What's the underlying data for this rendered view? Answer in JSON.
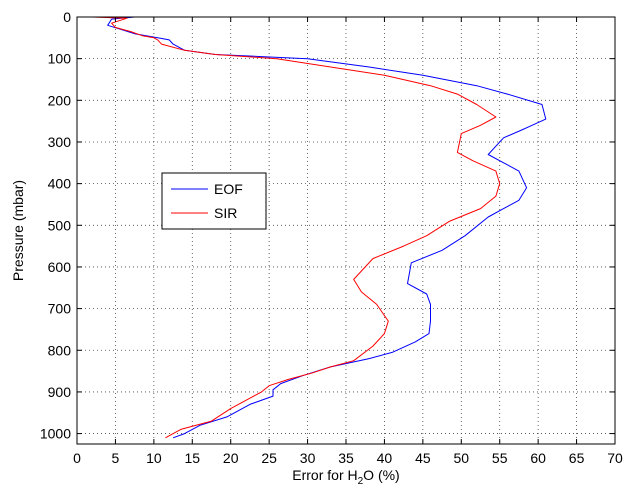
{
  "chart_data": {
    "type": "line",
    "xlabel": "Error for H2O (%)",
    "xlabel_parts": {
      "base": "Error for H",
      "sub": "2",
      "rest": "O (%)"
    },
    "ylabel": "Pressure (mbar)",
    "xlim": [
      0,
      70
    ],
    "ylim": [
      1025,
      0
    ],
    "y_reversed": true,
    "xticks": [
      0,
      5,
      10,
      15,
      20,
      25,
      30,
      35,
      40,
      45,
      50,
      55,
      60,
      65,
      70
    ],
    "yticks": [
      0,
      100,
      200,
      300,
      400,
      500,
      600,
      700,
      800,
      900,
      1000
    ],
    "grid": true,
    "legend_position": "middle-left",
    "series": [
      {
        "name": "EOF",
        "color": "#0000ff",
        "points": [
          [
            7.5,
            0
          ],
          [
            4.5,
            5
          ],
          [
            4.0,
            20
          ],
          [
            7.5,
            40
          ],
          [
            10.5,
            50
          ],
          [
            12.0,
            55
          ],
          [
            12.5,
            65
          ],
          [
            14.0,
            80
          ],
          [
            18.0,
            90
          ],
          [
            24.0,
            95
          ],
          [
            30.0,
            100
          ],
          [
            38.0,
            120
          ],
          [
            45.0,
            140
          ],
          [
            52.0,
            165
          ],
          [
            56.0,
            185
          ],
          [
            60.5,
            210
          ],
          [
            61.0,
            245
          ],
          [
            58.0,
            270
          ],
          [
            55.5,
            290
          ],
          [
            53.5,
            330
          ],
          [
            55.5,
            350
          ],
          [
            57.5,
            370
          ],
          [
            58.5,
            410
          ],
          [
            57.5,
            440
          ],
          [
            55.5,
            460
          ],
          [
            53.5,
            480
          ],
          [
            50.5,
            525
          ],
          [
            47.5,
            560
          ],
          [
            43.5,
            590
          ],
          [
            43.0,
            640
          ],
          [
            45.5,
            665
          ],
          [
            46.0,
            690
          ],
          [
            46.0,
            730
          ],
          [
            45.8,
            760
          ],
          [
            44.0,
            780
          ],
          [
            41.0,
            805
          ],
          [
            38.0,
            820
          ],
          [
            33.0,
            840
          ],
          [
            29.5,
            860
          ],
          [
            26.5,
            880
          ],
          [
            25.5,
            895
          ],
          [
            25.5,
            910
          ],
          [
            22.5,
            930
          ],
          [
            19.5,
            960
          ],
          [
            16.0,
            980
          ],
          [
            14.0,
            1000
          ],
          [
            12.5,
            1010
          ]
        ]
      },
      {
        "name": "SIR",
        "color": "#ff0000",
        "points": [
          [
            2.0,
            0
          ],
          [
            6.5,
            3
          ],
          [
            4.5,
            15
          ],
          [
            5.0,
            25
          ],
          [
            7.0,
            35
          ],
          [
            8.5,
            45
          ],
          [
            10.0,
            50
          ],
          [
            10.5,
            55
          ],
          [
            11.0,
            65
          ],
          [
            14.0,
            80
          ],
          [
            18.0,
            90
          ],
          [
            22.0,
            95
          ],
          [
            26.0,
            100
          ],
          [
            33.0,
            120
          ],
          [
            40.0,
            140
          ],
          [
            46.0,
            165
          ],
          [
            49.5,
            185
          ],
          [
            52.0,
            210
          ],
          [
            54.5,
            240
          ],
          [
            52.5,
            260
          ],
          [
            50.0,
            280
          ],
          [
            49.5,
            325
          ],
          [
            51.5,
            345
          ],
          [
            54.5,
            370
          ],
          [
            55.0,
            400
          ],
          [
            54.5,
            430
          ],
          [
            52.5,
            460
          ],
          [
            48.5,
            490
          ],
          [
            45.5,
            525
          ],
          [
            42.5,
            550
          ],
          [
            38.5,
            580
          ],
          [
            36.0,
            630
          ],
          [
            37.0,
            660
          ],
          [
            39.0,
            690
          ],
          [
            40.5,
            730
          ],
          [
            40.0,
            760
          ],
          [
            38.5,
            790
          ],
          [
            36.0,
            825
          ],
          [
            33.0,
            840
          ],
          [
            30.5,
            855
          ],
          [
            27.5,
            870
          ],
          [
            25.0,
            885
          ],
          [
            24.0,
            900
          ],
          [
            22.5,
            915
          ],
          [
            20.0,
            940
          ],
          [
            17.5,
            970
          ],
          [
            13.5,
            990
          ],
          [
            11.5,
            1010
          ]
        ]
      }
    ]
  }
}
